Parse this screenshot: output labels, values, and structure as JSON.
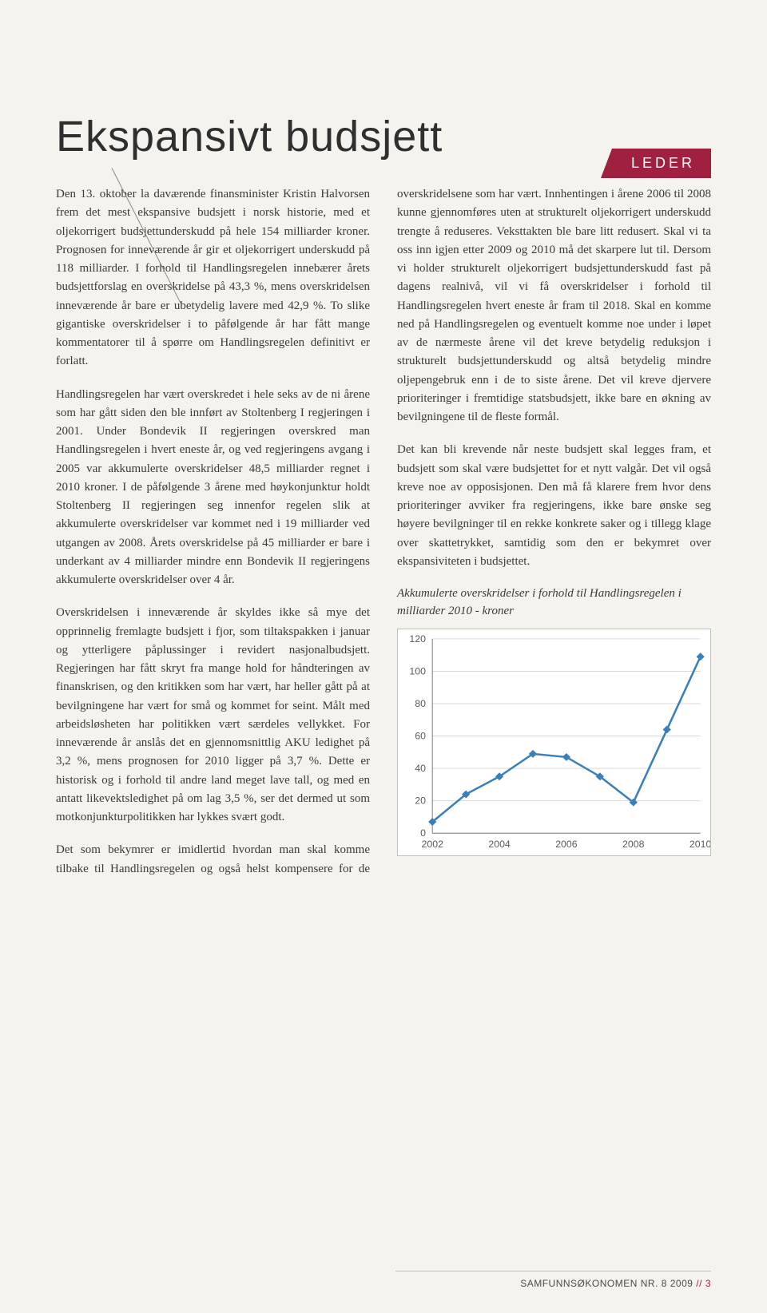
{
  "section_label": "LEDER",
  "title": "Ekspansivt budsjett",
  "paragraphs": {
    "p1": "Den 13. oktober la daværende finansminister Kristin Halvorsen frem det mest ekspansive budsjett i norsk historie, med et oljekorrigert budsjettunderskudd på hele 154 milliarder kroner. Prognosen for inneværende år gir et oljekorrigert underskudd på 118 milliarder. I forhold til Handlingsregelen innebærer årets budsjettforslag en overskridelse på 43,3 %, mens overskridelsen inneværende år bare er ubetydelig lavere med 42,9 %. To slike gigantiske overskridelser i to påfølgende år har fått mange kommentatorer til å spørre om Handlingsregelen definitivt er forlatt.",
    "p2": "Handlingsregelen har vært overskredet i hele seks av de ni årene som har gått siden den ble innført av Stoltenberg I regjeringen i 2001. Under Bondevik II regjeringen overskred man Handlingsregelen i hvert eneste år, og ved regjeringens avgang i 2005 var akkumulerte overskridelser 48,5 milliarder regnet i 2010 kroner. I de påfølgende 3 årene med høykonjunktur holdt Stoltenberg II regjeringen seg innenfor regelen slik at akkumulerte overskridelser var kommet ned i 19 milliarder ved utgangen av 2008. Årets overskridelse på 45 milliarder er bare i underkant av 4 milliarder mindre enn Bondevik II regjeringens akkumulerte overskridelser over 4 år.",
    "p3": "Overskridelsen i inneværende år skyldes ikke så mye det opprinnelig fremlagte budsjett i fjor, som tiltakspakken i januar og ytterligere påplussinger i revidert nasjonalbudsjett. Regjeringen har fått skryt fra mange hold for håndteringen av finanskrisen, og den kritikken som har vært, har heller gått på at bevilgningene har vært for små og kommet for seint. Målt med arbeidsløsheten har politikken vært særdeles vellykket. For inneværende år anslås det en gjennomsnittlig AKU ledighet på 3,2 %, mens prognosen for 2010 ligger på 3,7 %. Dette er historisk og i forhold til andre land meget lave tall, og med en antatt likevektsledighet på om lag 3,5 %, ser det dermed ut som motkonjunkturpolitikken har lykkes svært godt.",
    "p4": "Det som bekymrer er imidlertid hvordan man skal komme tilbake til Handlingsregelen og også helst kompensere for de overskridelsene som har vært. Innhentingen i årene 2006 til 2008 kunne gjennomføres uten at strukturelt oljekorrigert underskudd trengte å reduseres. Veksttakten ble bare litt redusert. Skal vi ta oss inn igjen etter 2009 og 2010 må det skarpere lut til. Dersom vi holder strukturelt oljekorrigert budsjettunderskudd fast på dagens realnivå, vil vi få overskridelser i forhold til Handlingsregelen hvert eneste år fram til 2018. Skal en komme ned på Handlingsregelen og eventuelt komme noe under i løpet av de nærmeste årene vil det kreve betydelig reduksjon i strukturelt budsjettunderskudd og altså betydelig mindre oljepengebruk enn i de to siste årene. Det vil kreve djervere prioriteringer i fremtidige statsbudsjett, ikke bare en økning av bevilgningene til de fleste formål.",
    "p5": "Det kan bli krevende når neste budsjett skal legges fram, et budsjett som skal være budsjettet for et nytt valgår. Det vil også kreve noe av opposisjonen. Den må få klarere frem hvor dens prioriteringer avviker fra regjeringens, ikke bare ønske seg høyere bevilgninger til en rekke konkrete saker og i tillegg klage over skattetrykket, samtidig som den er bekymret over ekspansiviteten i budsjettet."
  },
  "chart": {
    "caption": "Akkumulerte overskridelser i forhold til Handlingsregelen i milliarder 2010 - kroner",
    "type": "line",
    "x_values": [
      2002,
      2003,
      2004,
      2005,
      2006,
      2007,
      2008,
      2009,
      2010
    ],
    "x_ticks": [
      2002,
      2004,
      2006,
      2008,
      2010
    ],
    "y_values": [
      7,
      24,
      35,
      49,
      47,
      35,
      19,
      64,
      109
    ],
    "ylim": [
      0,
      120
    ],
    "ytick_step": 20,
    "y_ticks": [
      0,
      20,
      40,
      60,
      80,
      100,
      120
    ],
    "line_color": "#3b7fb8",
    "marker_color": "#3b7fb8",
    "marker_size": 5,
    "line_width": 2.5,
    "grid_color": "#d9d9d9",
    "axis_color": "#808080",
    "tick_font_color": "#5a5a5a",
    "tick_font_size": 12,
    "background_color": "#ffffff"
  },
  "footer": {
    "journal": "SAMFUNNSØKONOMEN",
    "issue": "NR. 8 2009",
    "separator": "//",
    "page": "3"
  },
  "colors": {
    "page_bg": "#f5f3ed",
    "accent": "#a02040",
    "text": "#3a3a3a"
  }
}
